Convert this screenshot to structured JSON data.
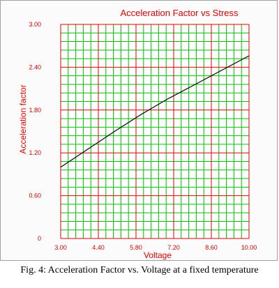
{
  "figure": {
    "caption": "Fig. 4:  Acceleration Factor vs. Voltage at a fixed temperature"
  },
  "colors": {
    "text": "#e00000",
    "minor_grid": "#00c000",
    "major_grid": "#e00000",
    "series": "#000000"
  },
  "chart_data": {
    "type": "line",
    "title": "Acceleration Factor vs Stress",
    "xlabel": "Voltage",
    "ylabel": "Acceleration factor",
    "xlim": [
      3.0,
      10.0
    ],
    "ylim": [
      0,
      3.0
    ],
    "x_ticks": [
      "3.00",
      "4.40",
      "5.80",
      "7.20",
      "8.60",
      "10.00"
    ],
    "y_ticks": [
      "0",
      "0.60",
      "1.20",
      "1.80",
      "2.40",
      "3.00"
    ],
    "grid": true,
    "series": [
      {
        "x": [
          3.0,
          4.0,
          5.0,
          6.0,
          7.0,
          8.0,
          9.0,
          10.0
        ],
        "y": [
          1.0,
          1.25,
          1.5,
          1.74,
          1.96,
          2.16,
          2.36,
          2.56
        ]
      }
    ]
  }
}
